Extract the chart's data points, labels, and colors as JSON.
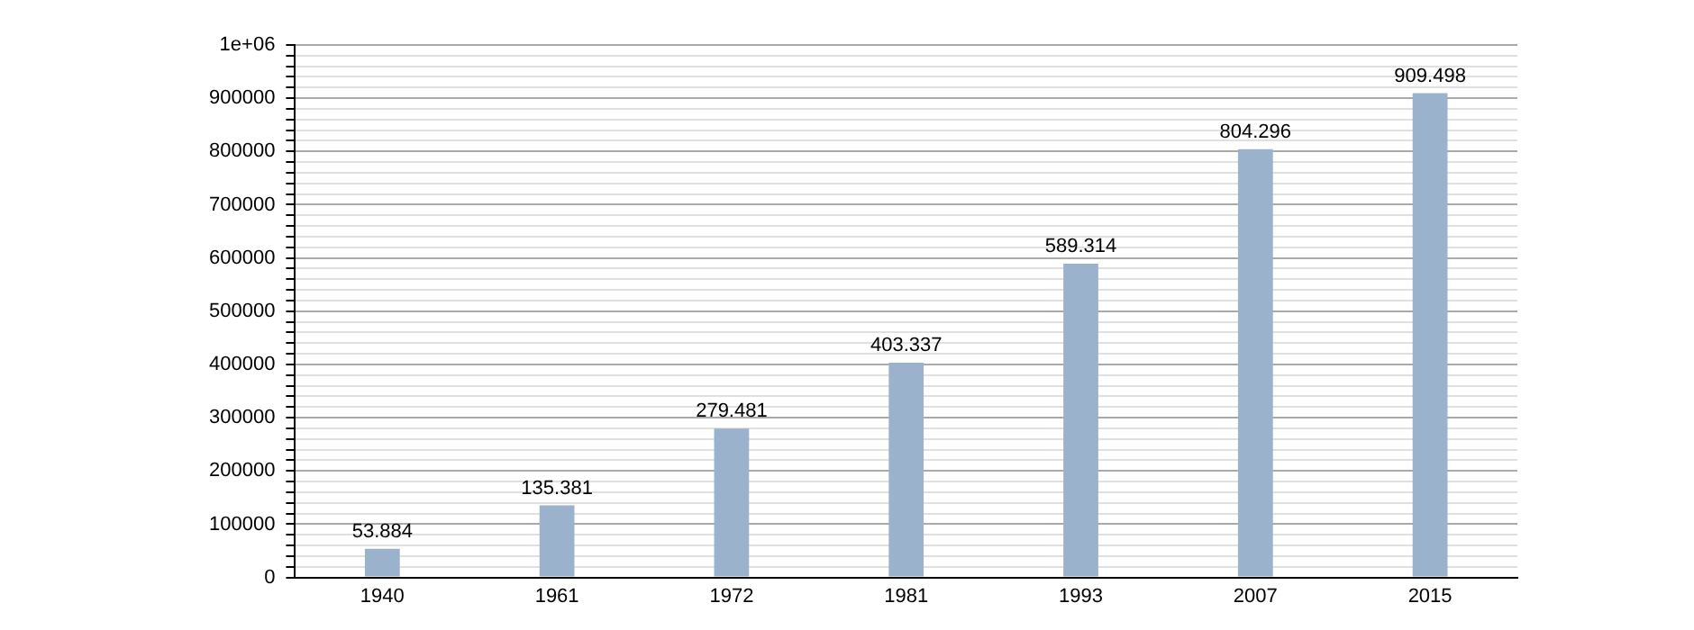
{
  "chart_data": {
    "type": "bar",
    "categories": [
      "1940",
      "1961",
      "1972",
      "1981",
      "1993",
      "2007",
      "2015"
    ],
    "values": [
      53884,
      135381,
      279481,
      403337,
      589314,
      804296,
      909498
    ],
    "value_labels": [
      "53.884",
      "135.381",
      "279.481",
      "403.337",
      "589.314",
      "804.296",
      "909.498"
    ],
    "color": "#9ab2cc",
    "ylim": [
      0,
      1000000
    ],
    "yticks": [
      0,
      {
        "value": 20000,
        "label": null
      },
      {
        "value": 40000,
        "label": null
      },
      {
        "value": 60000,
        "label": null
      },
      {
        "value": 80000,
        "label": null
      },
      100000,
      {
        "value": 120000,
        "label": null
      },
      {
        "value": 140000,
        "label": null
      },
      {
        "value": 160000,
        "label": null
      },
      {
        "value": 180000,
        "label": null
      },
      200000,
      {
        "value": 220000,
        "label": null
      },
      {
        "value": 240000,
        "label": null
      },
      {
        "value": 260000,
        "label": null
      },
      {
        "value": 280000,
        "label": null
      },
      300000,
      {
        "value": 320000,
        "label": null
      },
      {
        "value": 340000,
        "label": null
      },
      {
        "value": 360000,
        "label": null
      },
      {
        "value": 380000,
        "label": null
      },
      400000,
      {
        "value": 420000,
        "label": null
      },
      {
        "value": 440000,
        "label": null
      },
      {
        "value": 460000,
        "label": null
      },
      {
        "value": 480000,
        "label": null
      },
      500000,
      {
        "value": 520000,
        "label": null
      },
      {
        "value": 540000,
        "label": null
      },
      {
        "value": 560000,
        "label": null
      },
      {
        "value": 580000,
        "label": null
      },
      600000,
      {
        "value": 620000,
        "label": null
      },
      {
        "value": 640000,
        "label": null
      },
      {
        "value": 660000,
        "label": null
      },
      {
        "value": 680000,
        "label": null
      },
      700000,
      {
        "value": 720000,
        "label": null
      },
      {
        "value": 740000,
        "label": null
      },
      {
        "value": 760000,
        "label": null
      },
      {
        "value": 780000,
        "label": null
      },
      800000,
      {
        "value": 820000,
        "label": null
      },
      {
        "value": 840000,
        "label": null
      },
      {
        "value": 860000,
        "label": null
      },
      {
        "value": 880000,
        "label": null
      },
      900000,
      {
        "value": 920000,
        "label": null
      },
      {
        "value": 940000,
        "label": null
      },
      {
        "value": 960000,
        "label": null
      },
      {
        "value": 980000,
        "label": null
      },
      {
        "value": 1000000,
        "label": "1e+06"
      }
    ],
    "grid": "y",
    "legend": false
  }
}
